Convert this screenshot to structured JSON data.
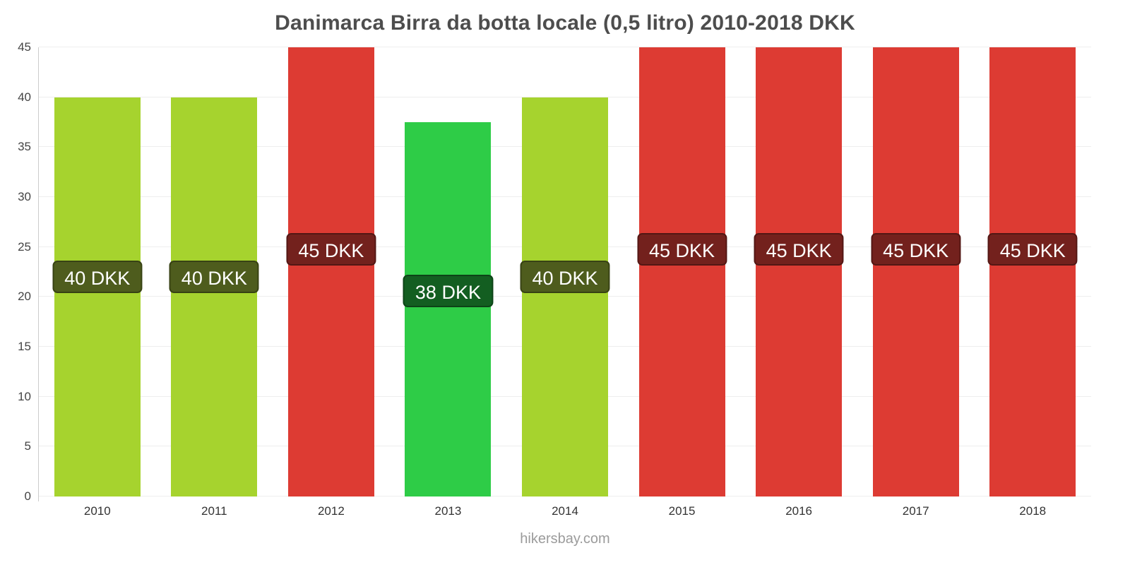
{
  "title": "Danimarca Birra da botta locale (0,5 litro) 2010-2018 DKK",
  "footer": "hikersbay.com",
  "chart_data": {
    "type": "bar",
    "title": "Danimarca Birra da botta locale (0,5 litro) 2010-2018 DKK",
    "xlabel": "",
    "ylabel": "",
    "categories": [
      "2010",
      "2011",
      "2012",
      "2013",
      "2014",
      "2015",
      "2016",
      "2017",
      "2018"
    ],
    "values": [
      40,
      40,
      45,
      37.5,
      40,
      45,
      45,
      45,
      45
    ],
    "bar_labels": [
      "40 DKK",
      "40 DKK",
      "45 DKK",
      "38 DKK",
      "40 DKK",
      "45 DKK",
      "45 DKK",
      "45 DKK",
      "45 DKK"
    ],
    "bar_colors": [
      "#a6d32e",
      "#a6d32e",
      "#dd3b33",
      "#2ecc47",
      "#a6d32e",
      "#dd3b33",
      "#dd3b33",
      "#dd3b33",
      "#dd3b33"
    ],
    "label_bg_colors": [
      "#4e5c1d",
      "#4e5c1d",
      "#73211d",
      "#135e21",
      "#4e5c1d",
      "#73211d",
      "#73211d",
      "#73211d",
      "#73211d"
    ],
    "ylim": [
      0,
      45
    ],
    "yticks": [
      0,
      5,
      10,
      15,
      20,
      25,
      30,
      35,
      40,
      45
    ],
    "grid": true,
    "legend": "none",
    "axis_color": "#cccccc",
    "gridline_color": "#eeeeee",
    "tick_label_color": "#444444"
  }
}
